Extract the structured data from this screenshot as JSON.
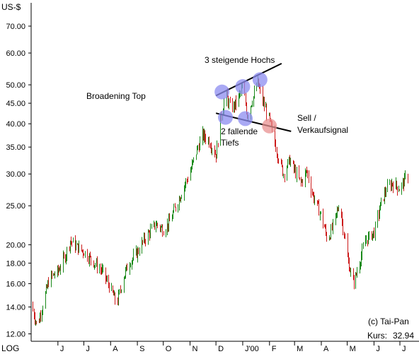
{
  "chart_data": {
    "type": "ohlc",
    "title": "",
    "ylabel": "US-$",
    "scale_label": "LOG",
    "yscale": "log",
    "ylim": [
      11.5,
      80
    ],
    "yticks": [
      "70.00",
      "60.00",
      "50.00",
      "45.00",
      "40.00",
      "35.00",
      "30.00",
      "25.00",
      "20.00",
      "18.00",
      "16.00",
      "14.00",
      "12.00"
    ],
    "ytick_values": [
      70,
      60,
      50,
      45,
      40,
      35,
      30,
      25,
      20,
      18,
      16,
      14,
      12
    ],
    "xticks": [
      "J",
      "J",
      "A",
      "S",
      "O",
      "N",
      "D",
      "J'00",
      "F",
      "M",
      "A",
      "M",
      "J",
      "J"
    ],
    "xtick_dates": [
      "1999-06-01",
      "1999-07-01",
      "1999-08-01",
      "1999-09-01",
      "1999-10-01",
      "1999-11-01",
      "1999-12-01",
      "2000-01-01",
      "2000-02-01",
      "2000-03-01",
      "2000-04-01",
      "2000-05-01",
      "2000-06-01",
      "2000-07-01"
    ],
    "xlim": [
      "1999-05-01",
      "2000-07-10"
    ],
    "price_points": [
      {
        "x": "1999-05-01",
        "y": 14.2
      },
      {
        "x": "1999-05-08",
        "y": 12.5
      },
      {
        "x": "1999-05-15",
        "y": 14.5
      },
      {
        "x": "1999-05-22",
        "y": 16.5
      },
      {
        "x": "1999-06-01",
        "y": 17.2
      },
      {
        "x": "1999-06-08",
        "y": 18.5
      },
      {
        "x": "1999-06-15",
        "y": 20.5
      },
      {
        "x": "1999-06-22",
        "y": 19.8
      },
      {
        "x": "1999-07-01",
        "y": 19.2
      },
      {
        "x": "1999-07-08",
        "y": 18.5
      },
      {
        "x": "1999-07-15",
        "y": 17.8
      },
      {
        "x": "1999-07-22",
        "y": 17.2
      },
      {
        "x": "1999-08-01",
        "y": 15.5
      },
      {
        "x": "1999-08-08",
        "y": 14.2
      },
      {
        "x": "1999-08-15",
        "y": 16.5
      },
      {
        "x": "1999-08-22",
        "y": 18.0
      },
      {
        "x": "1999-09-01",
        "y": 19.2
      },
      {
        "x": "1999-09-08",
        "y": 20.5
      },
      {
        "x": "1999-09-15",
        "y": 21.5
      },
      {
        "x": "1999-09-22",
        "y": 22.5
      },
      {
        "x": "1999-10-01",
        "y": 21.8
      },
      {
        "x": "1999-10-08",
        "y": 22.8
      },
      {
        "x": "1999-10-15",
        "y": 24.8
      },
      {
        "x": "1999-10-22",
        "y": 27.0
      },
      {
        "x": "1999-11-01",
        "y": 30.5
      },
      {
        "x": "1999-11-08",
        "y": 34.0
      },
      {
        "x": "1999-11-15",
        "y": 37.5
      },
      {
        "x": "1999-11-22",
        "y": 36.5
      },
      {
        "x": "1999-12-01",
        "y": 33.5
      },
      {
        "x": "1999-12-06",
        "y": 41.0
      },
      {
        "x": "1999-12-12",
        "y": 47.5
      },
      {
        "x": "1999-12-18",
        "y": 43.5
      },
      {
        "x": "1999-12-24",
        "y": 45.0
      },
      {
        "x": "2000-01-01",
        "y": 49.5
      },
      {
        "x": "2000-01-06",
        "y": 42.0
      },
      {
        "x": "2000-01-12",
        "y": 46.0
      },
      {
        "x": "2000-01-18",
        "y": 50.5
      },
      {
        "x": "2000-01-24",
        "y": 45.5
      },
      {
        "x": "2000-02-01",
        "y": 40.5
      },
      {
        "x": "2000-02-05",
        "y": 37.5
      },
      {
        "x": "2000-02-10",
        "y": 33.5
      },
      {
        "x": "2000-02-17",
        "y": 30.0
      },
      {
        "x": "2000-02-24",
        "y": 32.5
      },
      {
        "x": "2000-03-01",
        "y": 30.5
      },
      {
        "x": "2000-03-08",
        "y": 28.5
      },
      {
        "x": "2000-03-15",
        "y": 30.5
      },
      {
        "x": "2000-03-22",
        "y": 26.5
      },
      {
        "x": "2000-04-01",
        "y": 23.5
      },
      {
        "x": "2000-04-08",
        "y": 20.5
      },
      {
        "x": "2000-04-15",
        "y": 22.5
      },
      {
        "x": "2000-04-22",
        "y": 25.5
      },
      {
        "x": "2000-05-01",
        "y": 18.5
      },
      {
        "x": "2000-05-08",
        "y": 16.0
      },
      {
        "x": "2000-05-15",
        "y": 18.2
      },
      {
        "x": "2000-05-22",
        "y": 20.5
      },
      {
        "x": "2000-06-01",
        "y": 21.5
      },
      {
        "x": "2000-06-08",
        "y": 25.0
      },
      {
        "x": "2000-06-15",
        "y": 27.5
      },
      {
        "x": "2000-06-22",
        "y": 28.5
      },
      {
        "x": "2000-07-01",
        "y": 27.5
      },
      {
        "x": "2000-07-08",
        "y": 29.5
      }
    ],
    "trendlines": [
      {
        "from": {
          "x": "1999-12-01",
          "y": 47.0
        },
        "to": {
          "x": "2000-02-15",
          "y": 56.5
        }
      },
      {
        "from": {
          "x": "1999-12-01",
          "y": 42.5
        },
        "to": {
          "x": "2000-02-26",
          "y": 38.3
        }
      }
    ],
    "highlight_points": [
      {
        "x": "1999-12-08",
        "y": 48.0,
        "color": "#8c8cf0"
      },
      {
        "x": "1999-12-12",
        "y": 41.5,
        "color": "#8c8cf0"
      },
      {
        "x": "2000-01-01",
        "y": 49.5,
        "color": "#8c8cf0"
      },
      {
        "x": "2000-01-04",
        "y": 41.2,
        "color": "#8c8cf0"
      },
      {
        "x": "2000-01-21",
        "y": 51.5,
        "color": "#8c8cf0"
      },
      {
        "x": "2000-02-01",
        "y": 39.5,
        "color": "#e89090"
      }
    ],
    "annotations": [
      {
        "text": "Broadening Top"
      },
      {
        "text": "3 steigende Hochs"
      },
      {
        "text": "2 fallende"
      },
      {
        "text": "Tiefs"
      },
      {
        "text": "Sell /"
      },
      {
        "text": "Verkaufsignal"
      }
    ],
    "footer": {
      "source": "(c) Tai-Pan",
      "price_label": "Kurs:",
      "price_value": "32.94"
    },
    "colors": {
      "up": "#1a8a1a",
      "down": "#cc1a1a",
      "axis": "#000000",
      "trendline": "#000000",
      "highlight_blue": "#8c8cf0",
      "highlight_red": "#e89090"
    },
    "grid": false
  }
}
